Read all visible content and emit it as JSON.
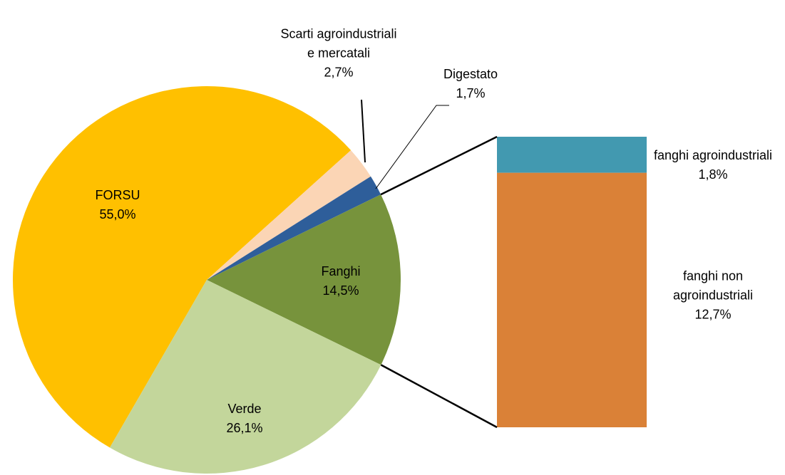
{
  "chart_data": {
    "type": "pie-of-bar",
    "categories": [
      "FORSU",
      "Scarti agroindustriali e mercatali",
      "Digestato",
      "Fanghi",
      "Verde"
    ],
    "values": [
      55.0,
      2.7,
      1.7,
      14.5,
      26.1
    ],
    "value_labels": [
      "55,0%",
      "2,7%",
      "1,7%",
      "14,5%",
      "26,1%"
    ],
    "colors": [
      "#FFC000",
      "#FBD5B5",
      "#2E5E9A",
      "#77933C",
      "#C3D69B"
    ],
    "bar": {
      "categories": [
        "fanghi agroindustriali",
        "fanghi non agroindustriali"
      ],
      "values": [
        1.8,
        12.7
      ],
      "value_labels": [
        "1,8%",
        "12,7%"
      ],
      "colors": [
        "#4299B0",
        "#DA8137"
      ]
    }
  }
}
